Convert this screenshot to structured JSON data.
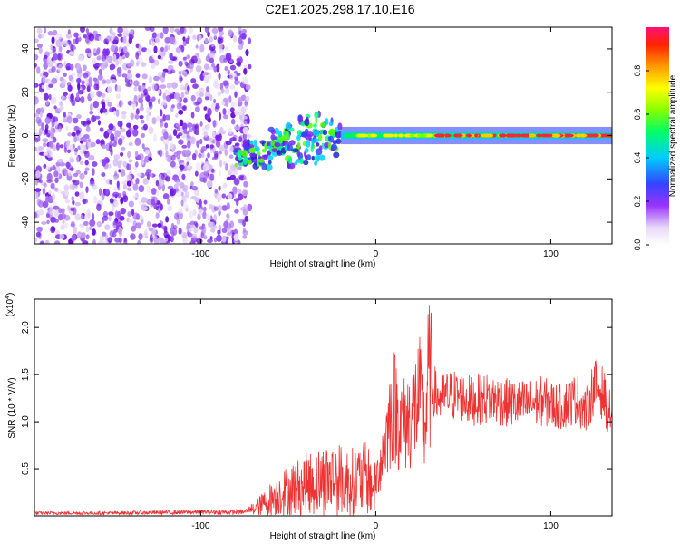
{
  "title": "C2E1.2025.298.17.10.E16",
  "spectrogram": {
    "xlabel": "Height of straight line (km)",
    "ylabel": "Frequency (Hz)",
    "xlim": [
      -195,
      135
    ],
    "ylim": [
      -50,
      50
    ],
    "xticks": [
      -100,
      0,
      100
    ],
    "xtick_labels": [
      "-100",
      "0",
      "100"
    ],
    "yticks": [
      -40,
      -20,
      0,
      20,
      40
    ],
    "ytick_labels": [
      "-40",
      "-20",
      "0",
      "20",
      "40"
    ]
  },
  "colorbar": {
    "label": "Normalized spectral amplitude",
    "range": [
      0.0,
      1.0
    ],
    "ticks": [
      0.0,
      0.2,
      0.4,
      0.6,
      0.8
    ],
    "tick_labels": [
      "0.0",
      "0.2",
      "0.4",
      "0.6",
      "0.8"
    ]
  },
  "chart_data": [
    {
      "type": "heatmap",
      "title": "C2E1.2025.298.17.10.E16",
      "xlabel": "Height of straight line (km)",
      "ylabel": "Frequency (Hz)",
      "xlim": [
        -195,
        135
      ],
      "ylim": [
        -50,
        50
      ],
      "colorbar_label": "Normalized spectral amplitude",
      "color_range": [
        0,
        1
      ],
      "regions": [
        {
          "x": [
            -195,
            -72
          ],
          "y": [
            -50,
            50
          ],
          "level": 0.1
        },
        {
          "x": [
            -80,
            -20
          ],
          "y": [
            -15,
            10
          ],
          "level": 0.4
        },
        {
          "x": [
            -20,
            135
          ],
          "y": [
            -2,
            2
          ],
          "level": 0.85
        }
      ]
    },
    {
      "type": "line",
      "xlabel": "Height of straight line (km)",
      "ylabel": "SNR (10 * V/V)",
      "y_multiplier": "(x10^4)",
      "xlim": [
        -195,
        135
      ],
      "ylim": [
        0,
        23000
      ],
      "yticks": [
        5000,
        10000,
        15000,
        20000
      ],
      "ytick_labels": [
        "0.5",
        "1.0",
        "1.5",
        "2.0"
      ],
      "xticks": [
        -100,
        0,
        100
      ],
      "xtick_labels": [
        "-100",
        "0",
        "100"
      ],
      "color": "#ee3333",
      "series": [
        {
          "x": [
            -195,
            -150,
            -100,
            -75,
            -65,
            -55,
            -45,
            -35,
            -25,
            -15,
            -5,
            0,
            5,
            10,
            15,
            20,
            25,
            28,
            30,
            35,
            45,
            55,
            65,
            75,
            85,
            95,
            105,
            115,
            120,
            125,
            130,
            133
          ],
          "y": [
            300,
            300,
            400,
            400,
            1500,
            3000,
            3800,
            4500,
            5000,
            4500,
            5000,
            3500,
            7500,
            12000,
            9500,
            10500,
            12500,
            9000,
            15000,
            12500,
            12800,
            12200,
            12500,
            12000,
            11800,
            12200,
            11500,
            12500,
            11000,
            14000,
            13000,
            11000
          ]
        }
      ]
    }
  ]
}
